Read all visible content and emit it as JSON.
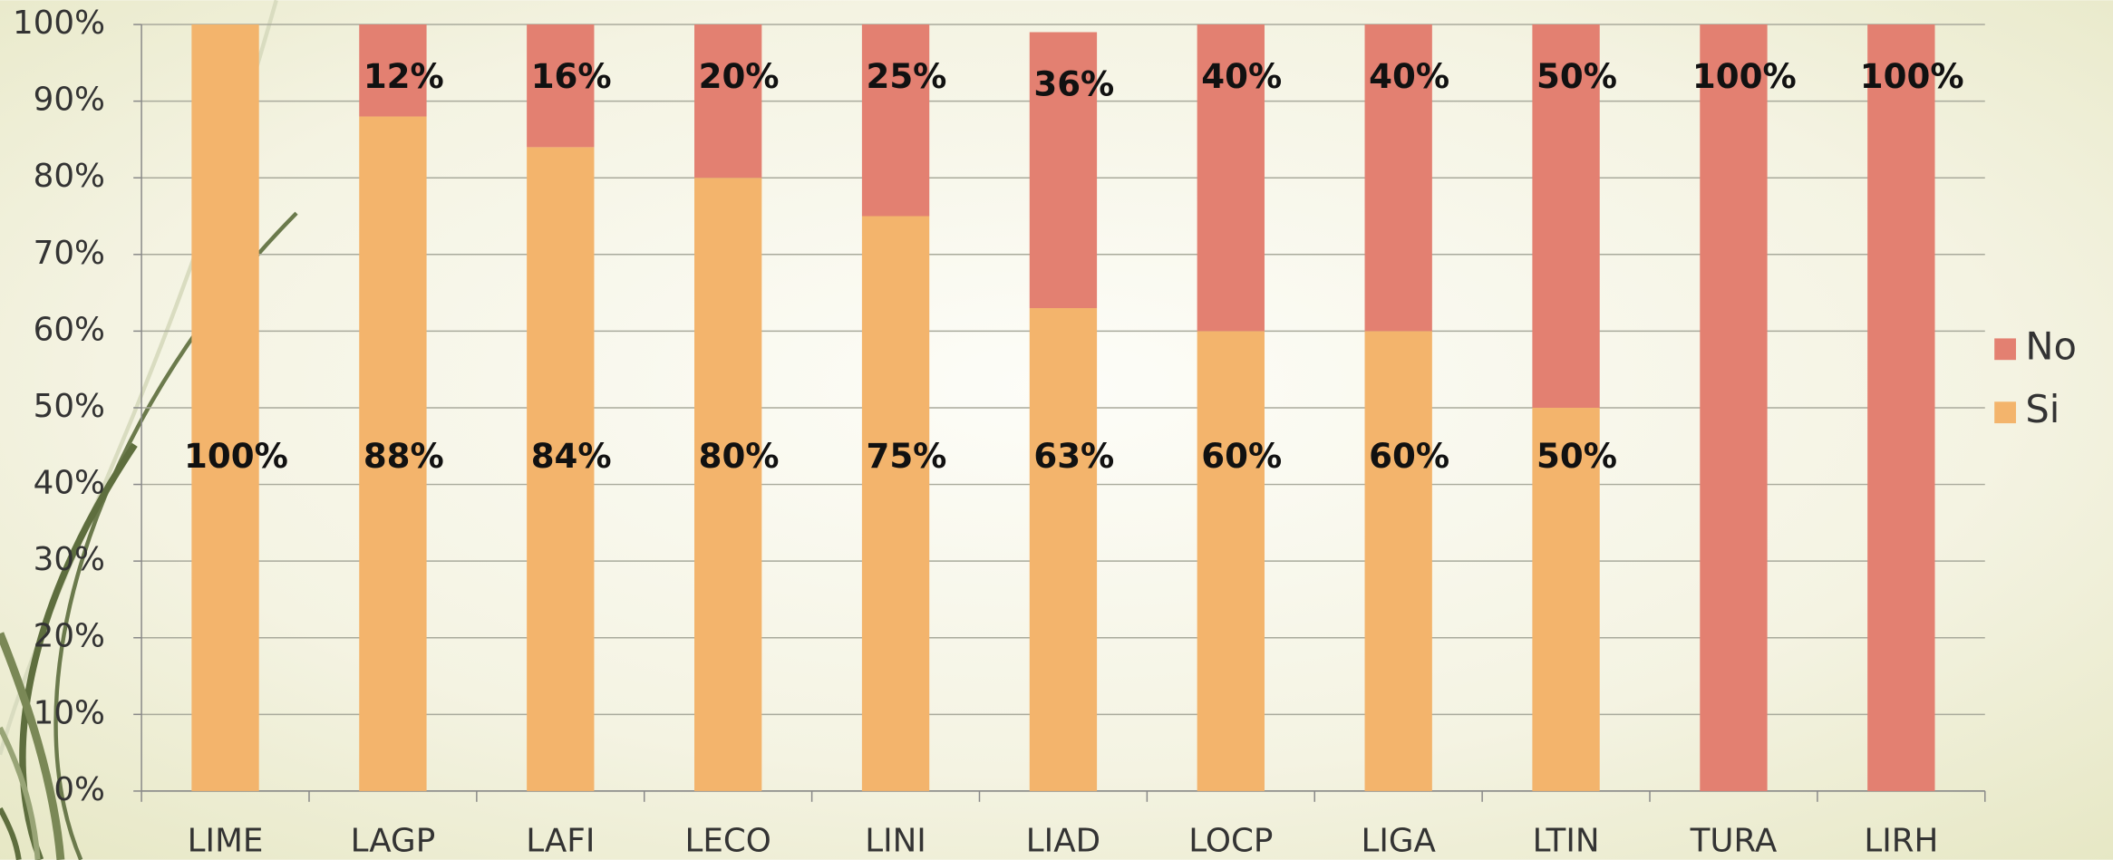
{
  "chart_data": {
    "type": "stacked_bar",
    "categories": [
      "LIME",
      "LAGP",
      "LAFI",
      "LECO",
      "LINI",
      "LIAD",
      "LOCP",
      "LIGA",
      "LTIN",
      "TURA",
      "LIRH"
    ],
    "series": [
      {
        "name": "Si",
        "color": "#f3b46c",
        "values": [
          100,
          88,
          84,
          80,
          75,
          63,
          60,
          60,
          50,
          0,
          0
        ],
        "value_labels": [
          "100%",
          "88%",
          "84%",
          "80%",
          "75%",
          "63%",
          "60%",
          "60%",
          "50%",
          null,
          null
        ]
      },
      {
        "name": "No",
        "color": "#e38071",
        "values": [
          0,
          12,
          16,
          20,
          25,
          36,
          40,
          40,
          50,
          100,
          100
        ],
        "value_labels": [
          null,
          "12%",
          "16%",
          "20%",
          "25%",
          "36%",
          "40%",
          "40%",
          "50%",
          "100%",
          "100%"
        ]
      }
    ],
    "ylim": [
      0,
      100
    ],
    "yticks": [
      {
        "value": 0,
        "label": "0%"
      },
      {
        "value": 10,
        "label": "10%"
      },
      {
        "value": 20,
        "label": "20%"
      },
      {
        "value": 30,
        "label": "30%"
      },
      {
        "value": 40,
        "label": "40%"
      },
      {
        "value": 50,
        "label": "50%"
      },
      {
        "value": 60,
        "label": "60%"
      },
      {
        "value": 70,
        "label": "70%"
      },
      {
        "value": 80,
        "label": "80%"
      },
      {
        "value": 90,
        "label": "90%"
      },
      {
        "value": 100,
        "label": "100%"
      }
    ],
    "grid": true,
    "legend": "right"
  }
}
